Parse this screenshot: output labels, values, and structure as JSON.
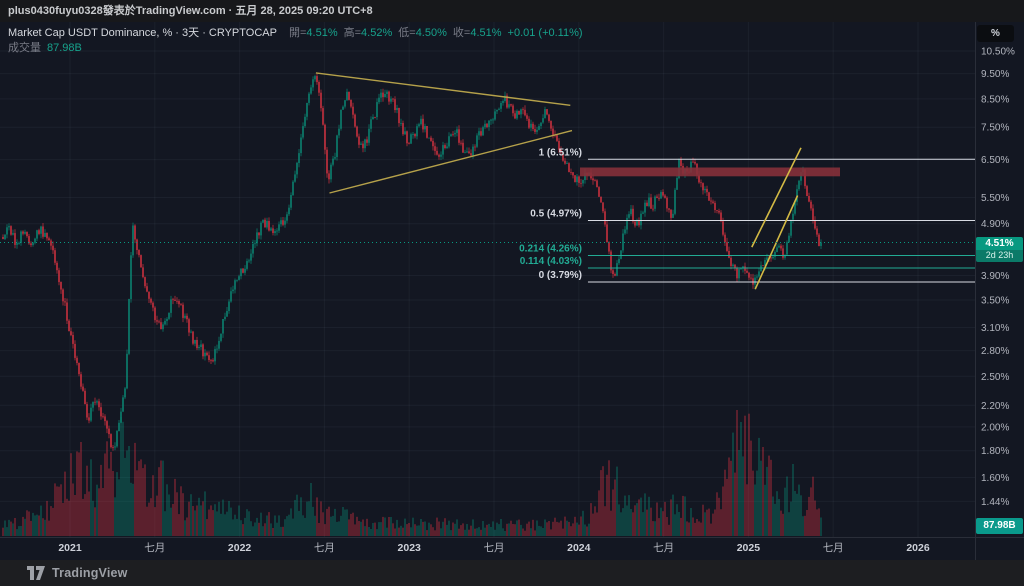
{
  "attribution": {
    "text": "plus0430fuyu0328發表於TradingView.com · 五月 28, 2025 09:20 UTC+8"
  },
  "legend": {
    "title": "Market Cap USDT Dominance, % · 3天 · CRYPTOCAP",
    "ohlc": [
      {
        "label": "開=",
        "value": "4.51%"
      },
      {
        "label": "高=",
        "value": "4.52%"
      },
      {
        "label": "低=",
        "value": "4.50%"
      },
      {
        "label": "收=",
        "value": "4.51%"
      }
    ],
    "change": "+0.01 (+0.11%)",
    "volume_label": "成交量",
    "volume_value": "87.98B"
  },
  "price_scale": {
    "unit_button": "%",
    "price_badge": {
      "price": "4.51%",
      "countdown": "2d 23h"
    },
    "volume_badge": "87.98B",
    "ticks": [
      {
        "label": "10.50%",
        "value": 10.5
      },
      {
        "label": "9.50%",
        "value": 9.5
      },
      {
        "label": "8.50%",
        "value": 8.5
      },
      {
        "label": "7.50%",
        "value": 7.5
      },
      {
        "label": "6.50%",
        "value": 6.5
      },
      {
        "label": "5.50%",
        "value": 5.5
      },
      {
        "label": "4.90%",
        "value": 4.9
      },
      {
        "label": "3.90%",
        "value": 3.9
      },
      {
        "label": "3.50%",
        "value": 3.5
      },
      {
        "label": "3.10%",
        "value": 3.1
      },
      {
        "label": "2.80%",
        "value": 2.8
      },
      {
        "label": "2.50%",
        "value": 2.5
      },
      {
        "label": "2.20%",
        "value": 2.2
      },
      {
        "label": "2.00%",
        "value": 2.0
      },
      {
        "label": "1.80%",
        "value": 1.8
      },
      {
        "label": "1.60%",
        "value": 1.6
      },
      {
        "label": "1.44%",
        "value": 1.44
      }
    ]
  },
  "time_scale": {
    "ticks": [
      {
        "label": "2021",
        "t": 2021,
        "major": true
      },
      {
        "label": "七月",
        "t": 2021.5,
        "major": false
      },
      {
        "label": "2022",
        "t": 2022,
        "major": true
      },
      {
        "label": "七月",
        "t": 2022.5,
        "major": false
      },
      {
        "label": "2023",
        "t": 2023,
        "major": true
      },
      {
        "label": "七月",
        "t": 2023.5,
        "major": false
      },
      {
        "label": "2024",
        "t": 2024,
        "major": true
      },
      {
        "label": "七月",
        "t": 2024.5,
        "major": false
      },
      {
        "label": "2025",
        "t": 2025,
        "major": true
      },
      {
        "label": "七月",
        "t": 2025.5,
        "major": false
      },
      {
        "label": "2026",
        "t": 2026,
        "major": true
      }
    ]
  },
  "watermark": {
    "brand": "TradingView"
  },
  "colors": {
    "bg": "#131722",
    "up": "#089981",
    "down": "#f23645",
    "grid": "rgba(170,180,200,0.06)",
    "border": "#2a2e39",
    "axis_text": "#b2b5be",
    "axis_text_bright": "#cdd0d8",
    "trendline": "#b5a14a",
    "channel": "#d3ba45",
    "fib_white": "#d8dbe3",
    "fib_teal": "#22ab94",
    "zone": "#86303a"
  },
  "chart_data": {
    "type": "candlestick",
    "title": "Market Cap USDT Dominance",
    "symbol": "CRYPTOCAP",
    "interval": "3天",
    "y_unit": "%",
    "y_scale": "log",
    "x_axis_years": [
      2021,
      2026
    ],
    "current_price": 4.51,
    "bars_end_t": 2025.43,
    "price_keyframes": [
      [
        2020.6,
        4.6
      ],
      [
        2020.64,
        4.78
      ],
      [
        2020.68,
        4.55
      ],
      [
        2020.73,
        4.68
      ],
      [
        2020.78,
        4.52
      ],
      [
        2020.82,
        4.76
      ],
      [
        2020.87,
        4.6
      ],
      [
        2020.92,
        4.05
      ],
      [
        2020.96,
        3.5
      ],
      [
        2021.01,
        2.93
      ],
      [
        2021.06,
        2.42
      ],
      [
        2021.11,
        2.06
      ],
      [
        2021.15,
        2.26
      ],
      [
        2021.2,
        2.08
      ],
      [
        2021.25,
        1.8
      ],
      [
        2021.29,
        2.0
      ],
      [
        2021.33,
        2.47
      ],
      [
        2021.37,
        4.83
      ],
      [
        2021.41,
        4.15
      ],
      [
        2021.44,
        3.7
      ],
      [
        2021.47,
        3.42
      ],
      [
        2021.51,
        3.23
      ],
      [
        2021.54,
        3.09
      ],
      [
        2021.58,
        3.34
      ],
      [
        2021.61,
        3.55
      ],
      [
        2021.65,
        3.4
      ],
      [
        2021.68,
        3.23
      ],
      [
        2021.72,
        2.98
      ],
      [
        2021.75,
        2.86
      ],
      [
        2021.79,
        2.77
      ],
      [
        2021.83,
        2.62
      ],
      [
        2021.86,
        2.83
      ],
      [
        2021.9,
        3.16
      ],
      [
        2021.93,
        3.42
      ],
      [
        2021.97,
        3.72
      ],
      [
        2022.0,
        3.94
      ],
      [
        2022.04,
        4.15
      ],
      [
        2022.07,
        4.34
      ],
      [
        2022.11,
        4.68
      ],
      [
        2022.14,
        4.97
      ],
      [
        2022.18,
        4.83
      ],
      [
        2022.21,
        4.68
      ],
      [
        2022.25,
        4.91
      ],
      [
        2022.29,
        5.26
      ],
      [
        2022.32,
        5.98
      ],
      [
        2022.36,
        7.09
      ],
      [
        2022.39,
        8.09
      ],
      [
        2022.42,
        8.84
      ],
      [
        2022.45,
        9.32
      ],
      [
        2022.49,
        7.59
      ],
      [
        2022.52,
        5.98
      ],
      [
        2022.56,
        6.63
      ],
      [
        2022.6,
        8.09
      ],
      [
        2022.64,
        8.65
      ],
      [
        2022.67,
        7.74
      ],
      [
        2022.71,
        6.78
      ],
      [
        2022.75,
        7.02
      ],
      [
        2022.78,
        7.74
      ],
      [
        2022.82,
        8.33
      ],
      [
        2022.85,
        8.76
      ],
      [
        2022.89,
        8.46
      ],
      [
        2022.92,
        8.18
      ],
      [
        2022.96,
        7.46
      ],
      [
        2022.99,
        7.09
      ],
      [
        2023.03,
        7.23
      ],
      [
        2023.06,
        7.67
      ],
      [
        2023.1,
        7.39
      ],
      [
        2023.13,
        6.93
      ],
      [
        2023.17,
        6.63
      ],
      [
        2023.21,
        6.83
      ],
      [
        2023.24,
        7.23
      ],
      [
        2023.28,
        7.33
      ],
      [
        2023.31,
        6.93
      ],
      [
        2023.35,
        6.63
      ],
      [
        2023.38,
        6.93
      ],
      [
        2023.42,
        7.26
      ],
      [
        2023.45,
        7.46
      ],
      [
        2023.49,
        7.74
      ],
      [
        2023.52,
        8.02
      ],
      [
        2023.56,
        8.46
      ],
      [
        2023.59,
        8.18
      ],
      [
        2023.63,
        7.88
      ],
      [
        2023.66,
        8.02
      ],
      [
        2023.7,
        7.6
      ],
      [
        2023.74,
        7.39
      ],
      [
        2023.77,
        7.74
      ],
      [
        2023.81,
        8.09
      ],
      [
        2023.84,
        7.46
      ],
      [
        2023.88,
        6.78
      ],
      [
        2023.92,
        6.35
      ],
      [
        2023.96,
        6.15
      ],
      [
        2024.0,
        5.81
      ],
      [
        2024.03,
        5.99
      ],
      [
        2024.07,
        6.15
      ],
      [
        2024.1,
        5.81
      ],
      [
        2024.13,
        5.43
      ],
      [
        2024.16,
        4.64
      ],
      [
        2024.19,
        4.05
      ],
      [
        2024.21,
        3.91
      ],
      [
        2024.24,
        4.24
      ],
      [
        2024.27,
        4.74
      ],
      [
        2024.3,
        5.19
      ],
      [
        2024.34,
        4.85
      ],
      [
        2024.37,
        5.07
      ],
      [
        2024.41,
        5.43
      ],
      [
        2024.44,
        5.31
      ],
      [
        2024.48,
        5.68
      ],
      [
        2024.51,
        5.55
      ],
      [
        2024.55,
        4.85
      ],
      [
        2024.59,
        6.54
      ],
      [
        2024.62,
        6.07
      ],
      [
        2024.66,
        6.35
      ],
      [
        2024.69,
        6.21
      ],
      [
        2024.72,
        5.81
      ],
      [
        2024.75,
        5.55
      ],
      [
        2024.79,
        5.43
      ],
      [
        2024.82,
        5.19
      ],
      [
        2024.86,
        4.64
      ],
      [
        2024.89,
        4.11
      ],
      [
        2024.93,
        3.91
      ],
      [
        2024.96,
        4.05
      ],
      [
        2025.0,
        3.82
      ],
      [
        2025.03,
        3.7
      ],
      [
        2025.07,
        4.05
      ],
      [
        2025.1,
        4.24
      ],
      [
        2025.14,
        4.11
      ],
      [
        2025.17,
        4.44
      ],
      [
        2025.21,
        4.3
      ],
      [
        2025.24,
        4.7
      ],
      [
        2025.27,
        5.19
      ],
      [
        2025.29,
        5.94
      ],
      [
        2025.32,
        6.15
      ],
      [
        2025.34,
        5.81
      ],
      [
        2025.36,
        5.31
      ],
      [
        2025.39,
        4.74
      ],
      [
        2025.41,
        4.52
      ],
      [
        2025.43,
        4.51
      ]
    ],
    "volume_unit": "B",
    "volume_current": 87.98,
    "volume_keyframes": [
      [
        2020.6,
        44
      ],
      [
        2020.7,
        61
      ],
      [
        2020.82,
        96
      ],
      [
        2020.91,
        154
      ],
      [
        2020.97,
        241
      ],
      [
        2021.03,
        298
      ],
      [
        2021.09,
        329
      ],
      [
        2021.15,
        272
      ],
      [
        2021.21,
        316
      ],
      [
        2021.27,
        351
      ],
      [
        2021.31,
        342
      ],
      [
        2021.37,
        360
      ],
      [
        2021.41,
        263
      ],
      [
        2021.47,
        211
      ],
      [
        2021.53,
        228
      ],
      [
        2021.59,
        184
      ],
      [
        2021.65,
        158
      ],
      [
        2021.71,
        140
      ],
      [
        2021.77,
        132
      ],
      [
        2021.83,
        149
      ],
      [
        2021.88,
        114
      ],
      [
        2021.94,
        105
      ],
      [
        2022.0,
        88
      ],
      [
        2022.09,
        75
      ],
      [
        2022.18,
        79
      ],
      [
        2022.27,
        70
      ],
      [
        2022.36,
        132
      ],
      [
        2022.42,
        158
      ],
      [
        2022.47,
        123
      ],
      [
        2022.56,
        96
      ],
      [
        2022.65,
        75
      ],
      [
        2022.74,
        61
      ],
      [
        2022.83,
        66
      ],
      [
        2022.92,
        53
      ],
      [
        2023.0,
        57
      ],
      [
        2023.09,
        48
      ],
      [
        2023.18,
        53
      ],
      [
        2023.27,
        48
      ],
      [
        2023.36,
        48
      ],
      [
        2023.45,
        44
      ],
      [
        2023.54,
        48
      ],
      [
        2023.62,
        48
      ],
      [
        2023.71,
        44
      ],
      [
        2023.8,
        57
      ],
      [
        2023.89,
        53
      ],
      [
        2023.98,
        66
      ],
      [
        2024.05,
        79
      ],
      [
        2024.11,
        123
      ],
      [
        2024.15,
        272
      ],
      [
        2024.2,
        175
      ],
      [
        2024.24,
        241
      ],
      [
        2024.29,
        132
      ],
      [
        2024.35,
        105
      ],
      [
        2024.41,
        132
      ],
      [
        2024.47,
        105
      ],
      [
        2024.52,
        96
      ],
      [
        2024.58,
        158
      ],
      [
        2024.64,
        123
      ],
      [
        2024.7,
        96
      ],
      [
        2024.76,
        114
      ],
      [
        2024.82,
        132
      ],
      [
        2024.87,
        241
      ],
      [
        2024.91,
        416
      ],
      [
        2024.93,
        548
      ],
      [
        2024.97,
        395
      ],
      [
        2025.01,
        460
      ],
      [
        2025.05,
        517
      ],
      [
        2025.08,
        272
      ],
      [
        2025.13,
        219
      ],
      [
        2025.17,
        184
      ],
      [
        2025.22,
        197
      ],
      [
        2025.27,
        219
      ],
      [
        2025.32,
        175
      ],
      [
        2025.35,
        202
      ],
      [
        2025.38,
        285
      ],
      [
        2025.41,
        140
      ],
      [
        2025.43,
        88
      ]
    ],
    "fib_retracement": {
      "t_start": 2024.054,
      "levels": [
        {
          "label": "1 (6.51%)",
          "level": 1,
          "value": 6.51,
          "color": "white"
        },
        {
          "label": "0.5 (4.97%)",
          "level": 0.5,
          "value": 4.97,
          "color": "white"
        },
        {
          "label": "0.214 (4.26%)",
          "level": 0.214,
          "value": 4.26,
          "color": "teal"
        },
        {
          "label": "0.114 (4.03%)",
          "level": 0.114,
          "value": 4.03,
          "color": "teal"
        },
        {
          "label": "0 (3.79%)",
          "level": 0,
          "value": 3.79,
          "color": "white"
        }
      ]
    },
    "supply_zone": {
      "t_start": 2024.007,
      "t_end": 2025.54,
      "v_top": 6.28,
      "v_bottom": 6.04
    },
    "triangle": {
      "upper": [
        [
          2022.45,
          9.53
        ],
        [
          2023.95,
          8.26
        ]
      ],
      "lower": [
        [
          2022.53,
          5.61
        ],
        [
          2023.96,
          7.39
        ]
      ]
    },
    "channel": {
      "upper": [
        [
          2025.02,
          4.42
        ],
        [
          2025.31,
          6.85
        ]
      ],
      "lower": [
        [
          2025.04,
          3.67
        ],
        [
          2025.29,
          5.55
        ]
      ]
    }
  }
}
